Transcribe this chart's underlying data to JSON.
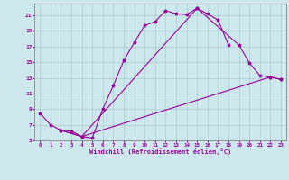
{
  "xlabel": "Windchill (Refroidissement éolien,°C)",
  "bg_color": "#cce8ec",
  "line_color": "#990099",
  "grid_color": "#aacccc",
  "xlim": [
    -0.5,
    23.5
  ],
  "ylim": [
    5,
    22.5
  ],
  "yticks": [
    5,
    7,
    9,
    11,
    13,
    15,
    17,
    19,
    21
  ],
  "xticks": [
    0,
    1,
    2,
    3,
    4,
    5,
    6,
    7,
    8,
    9,
    10,
    11,
    12,
    13,
    14,
    15,
    16,
    17,
    18,
    19,
    20,
    21,
    22,
    23
  ],
  "line1_x": [
    0,
    1,
    2,
    3,
    4,
    5,
    6,
    7,
    8,
    9,
    10,
    11,
    12,
    13,
    14,
    15,
    16,
    17,
    18
  ],
  "line1_y": [
    8.5,
    7.0,
    6.3,
    6.2,
    5.5,
    5.3,
    9.0,
    12.0,
    15.2,
    17.5,
    19.7,
    20.2,
    21.6,
    21.2,
    21.1,
    21.9,
    21.2,
    20.4,
    17.2
  ],
  "line2_x": [
    2,
    4,
    15,
    19,
    20,
    21,
    22,
    23
  ],
  "line2_y": [
    6.3,
    5.5,
    21.9,
    17.2,
    14.9,
    13.3,
    13.1,
    12.8
  ],
  "line3_x": [
    2,
    4,
    22,
    23
  ],
  "line3_y": [
    6.3,
    5.5,
    13.1,
    12.8
  ],
  "marker": "*",
  "markersize": 2.5,
  "linewidth": 0.8,
  "tick_fontsize": 4.2,
  "xlabel_fontsize": 5.0
}
